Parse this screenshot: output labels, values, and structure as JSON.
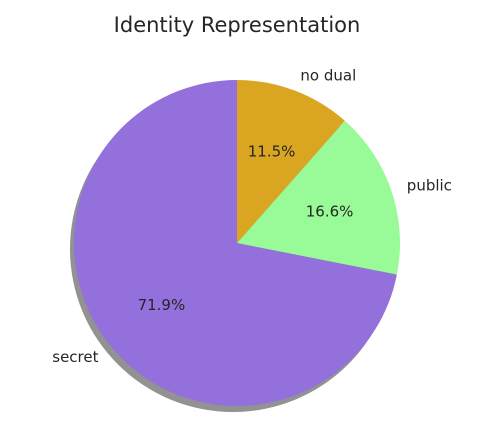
{
  "chart_data": {
    "type": "pie",
    "title": "Identity Representation",
    "categories": [
      "secret",
      "public",
      "no dual"
    ],
    "values": [
      71.9,
      16.6,
      11.5
    ],
    "percent_labels": [
      "71.9%",
      "16.6%",
      "11.5%"
    ],
    "colors": [
      "#9370db",
      "#98fb98",
      "#daa520"
    ],
    "start_angle_deg": 90,
    "direction": "counterclockwise",
    "shadow": true
  }
}
